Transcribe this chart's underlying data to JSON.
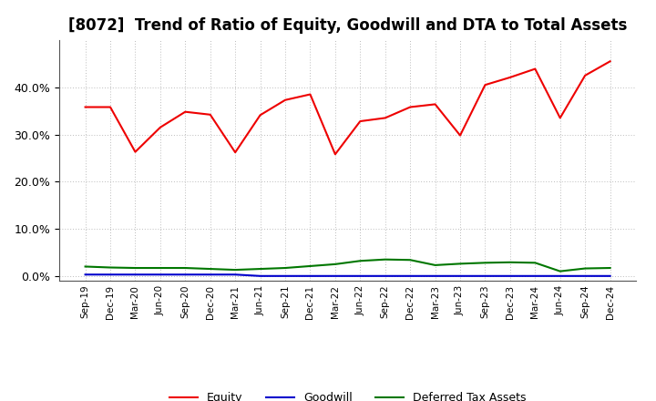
{
  "title": "[8072]  Trend of Ratio of Equity, Goodwill and DTA to Total Assets",
  "x_labels": [
    "Sep-19",
    "Dec-19",
    "Mar-20",
    "Jun-20",
    "Sep-20",
    "Dec-20",
    "Mar-21",
    "Jun-21",
    "Sep-21",
    "Dec-21",
    "Mar-22",
    "Jun-22",
    "Sep-22",
    "Dec-22",
    "Mar-23",
    "Jun-23",
    "Sep-23",
    "Dec-23",
    "Mar-24",
    "Jun-24",
    "Sep-24",
    "Dec-24"
  ],
  "equity": [
    35.8,
    35.8,
    26.3,
    31.5,
    34.8,
    34.2,
    26.2,
    34.1,
    37.3,
    38.5,
    25.8,
    32.8,
    33.5,
    35.8,
    36.4,
    29.8,
    40.5,
    42.1,
    43.9,
    33.5,
    42.5,
    45.5
  ],
  "goodwill": [
    0.3,
    0.3,
    0.3,
    0.3,
    0.3,
    0.3,
    0.3,
    0.0,
    0.0,
    0.0,
    0.0,
    0.0,
    0.0,
    0.0,
    0.0,
    0.0,
    0.0,
    0.0,
    0.0,
    0.0,
    0.0,
    0.0
  ],
  "dta": [
    2.0,
    1.8,
    1.7,
    1.7,
    1.7,
    1.5,
    1.3,
    1.5,
    1.7,
    2.1,
    2.5,
    3.2,
    3.5,
    3.4,
    2.3,
    2.6,
    2.8,
    2.9,
    2.8,
    1.0,
    1.6,
    1.7
  ],
  "equity_color": "#ee0000",
  "goodwill_color": "#0000cc",
  "dta_color": "#007700",
  "ylim": [
    -1,
    50
  ],
  "yticks": [
    0,
    10,
    20,
    30,
    40
  ],
  "background_color": "#ffffff",
  "grid_color": "#bbbbbb",
  "title_fontsize": 12
}
